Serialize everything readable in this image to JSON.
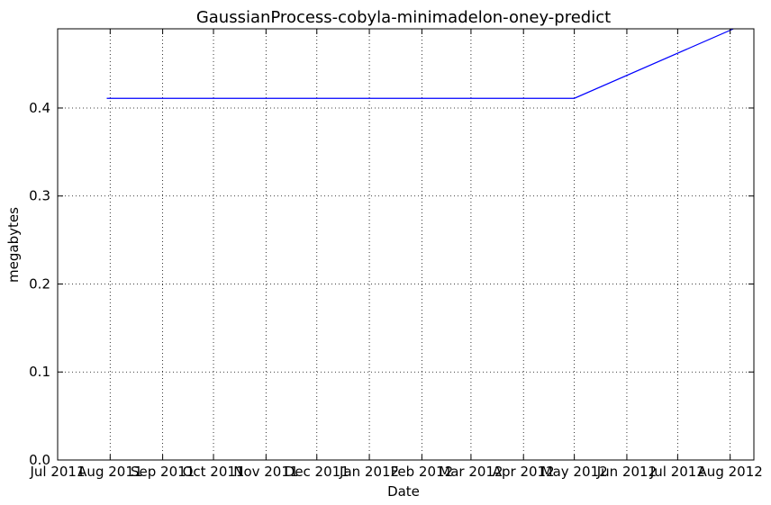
{
  "chart_data": {
    "type": "line",
    "title": "GaussianProcess-cobyla-minimadelon-oney-predict",
    "xlabel": "Date",
    "ylabel": "megabytes",
    "xlim": [
      "2011-07-01",
      "2012-08-15"
    ],
    "ylim": [
      0.0,
      0.49
    ],
    "grid": true,
    "x_ticks": [
      {
        "date": "2011-07-01",
        "label": "Jul 2011"
      },
      {
        "date": "2011-08-01",
        "label": "Aug 2011"
      },
      {
        "date": "2011-09-01",
        "label": "Sep 2011"
      },
      {
        "date": "2011-10-01",
        "label": "Oct 2011"
      },
      {
        "date": "2011-11-01",
        "label": "Nov 2011"
      },
      {
        "date": "2011-12-01",
        "label": "Dec 2011"
      },
      {
        "date": "2012-01-01",
        "label": "Jan 2012"
      },
      {
        "date": "2012-02-01",
        "label": "Feb 2012"
      },
      {
        "date": "2012-03-01",
        "label": "Mar 2012"
      },
      {
        "date": "2012-04-01",
        "label": "Apr 2012"
      },
      {
        "date": "2012-05-01",
        "label": "May 2012"
      },
      {
        "date": "2012-06-01",
        "label": "Jun 2012"
      },
      {
        "date": "2012-07-01",
        "label": "Jul 2012"
      },
      {
        "date": "2012-08-01",
        "label": "Aug 2012"
      }
    ],
    "y_ticks": [
      {
        "value": 0.0,
        "label": "0.0"
      },
      {
        "value": 0.1,
        "label": "0.1"
      },
      {
        "value": 0.2,
        "label": "0.2"
      },
      {
        "value": 0.3,
        "label": "0.3"
      },
      {
        "value": 0.4,
        "label": "0.4"
      }
    ],
    "series": [
      {
        "color": "#0000ff",
        "points": [
          {
            "x": "2011-07-30",
            "y": 0.411
          },
          {
            "x": "2012-05-01",
            "y": 0.411
          },
          {
            "x": "2012-08-03",
            "y": 0.49
          }
        ]
      }
    ]
  }
}
